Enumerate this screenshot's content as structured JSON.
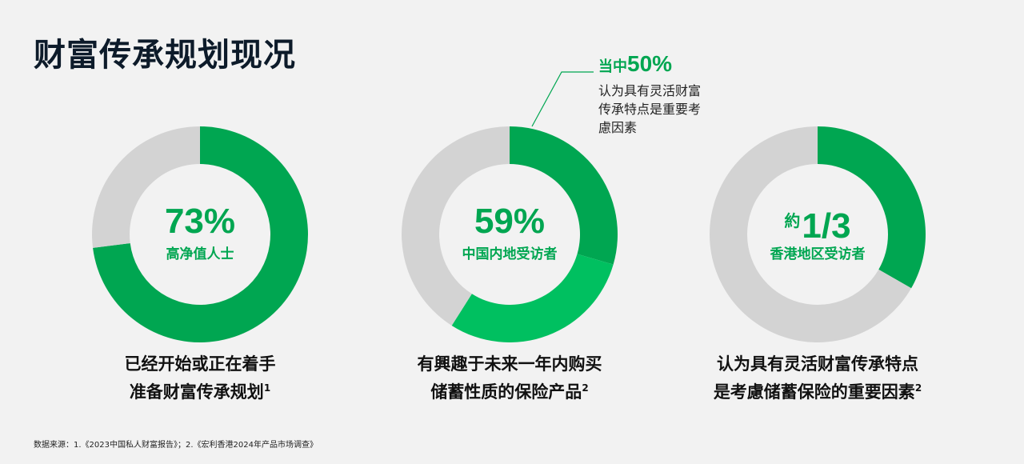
{
  "title": "财富传承规划现况",
  "colors": {
    "green": "#00a651",
    "light_green": "#00c060",
    "grey": "#d3d3d3"
  },
  "chart_data": [
    {
      "type": "pie",
      "values": [
        73,
        27
      ],
      "center_value": "73%",
      "center_label": "高净值人士",
      "caption_line1": "已经开始或正在着手",
      "caption_line2": "准备财富传承规划",
      "note": "1"
    },
    {
      "type": "pie",
      "values": [
        29.5,
        29.5,
        41
      ],
      "center_value": "59%",
      "center_label": "中国内地受访者",
      "caption_line1": "有興趣于未来一年内购买",
      "caption_line2": "储蓄性质的保险产品",
      "note": "2",
      "annotation": {
        "prefix": "当中",
        "value": "50%",
        "text": [
          "认为具有灵活财富",
          "传承特点是重要考",
          "慮因素"
        ]
      }
    },
    {
      "type": "pie",
      "values": [
        33.3,
        66.7
      ],
      "center_prefix": "約",
      "center_value": "1/3",
      "center_label": "香港地区受访者",
      "caption_line1": "认为具有灵活财富传承特点",
      "caption_line2": "是考慮储蓄保险的重要因素",
      "note": "2"
    }
  ],
  "source": "数据来源：1.《2023中国私人财富报告》；2.《宏利香港2024年产品市场调查》"
}
